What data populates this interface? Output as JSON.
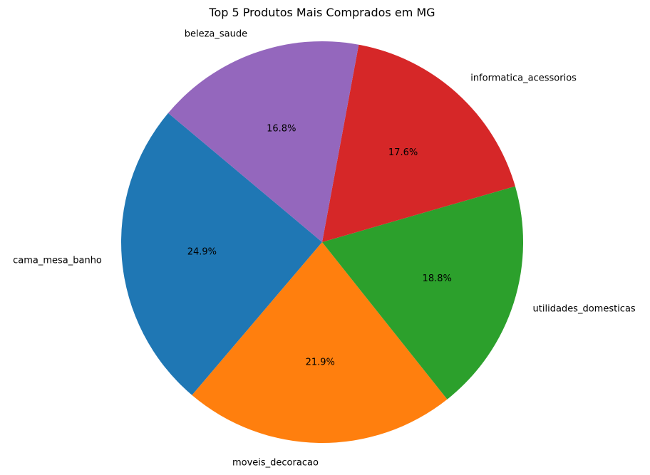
{
  "chart_data": {
    "type": "pie",
    "title": "Top 5 Produtos Mais Comprados em MG",
    "slices": [
      {
        "label": "cama_mesa_banho",
        "value": 24.9,
        "pct_label": "24.9%",
        "color": "#1f77b4"
      },
      {
        "label": "moveis_decoracao",
        "value": 21.9,
        "pct_label": "21.9%",
        "color": "#ff7f0e"
      },
      {
        "label": "utilidades_domesticas",
        "value": 18.8,
        "pct_label": "18.8%",
        "color": "#2ca02c"
      },
      {
        "label": "informatica_acessorios",
        "value": 17.6,
        "pct_label": "17.6%",
        "color": "#d62728"
      },
      {
        "label": "beleza_saude",
        "value": 16.8,
        "pct_label": "16.8%",
        "color": "#9467bd"
      }
    ],
    "start_angle_deg": 140,
    "direction": "counterclockwise",
    "legend": "none"
  }
}
